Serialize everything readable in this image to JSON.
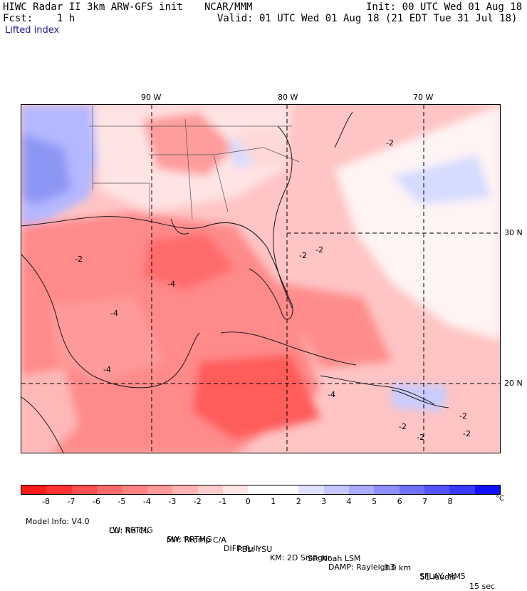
{
  "header": {
    "model": "HIWC Radar II 3km ARW-GFS init",
    "center": "NCAR/MMM",
    "init": "Init: 00 UTC Wed 01 Aug 18",
    "fcst": "Fcst:    1 h",
    "valid": "Valid: 01 UTC Wed 01 Aug 18 (21 EDT Tue 31 Jul 18)",
    "field": "Lifted index"
  },
  "axes": {
    "lon_labels": [
      "90 W",
      "80 W",
      "70 W"
    ],
    "lat_labels": [
      "30 N",
      "20 N"
    ]
  },
  "map": {
    "contour_labels": [
      "-2",
      "-4",
      "-4",
      "-2",
      "-4",
      "-2",
      "-2",
      "-2",
      "-4",
      "-2",
      "-2",
      "-2"
    ]
  },
  "legend": {
    "colors": [
      "#ff1a1a",
      "#ff3333",
      "#ff5050",
      "#ff6b6b",
      "#ff8282",
      "#ff9a9a",
      "#ffb3b3",
      "#ffcccc",
      "#ffe6e6",
      "#ffffff",
      "#ffffff",
      "#e0e0ff",
      "#c6c6ff",
      "#aaaaff",
      "#8e8eff",
      "#7070ff",
      "#5555ff",
      "#3a3aff",
      "#1010ff"
    ],
    "labels": [
      "-8",
      "-7",
      "-6",
      "-5",
      "-4",
      "-3",
      "-2",
      "-1",
      "0",
      "1",
      "2",
      "3",
      "4",
      "5",
      "6",
      "7",
      "8"
    ],
    "unit": "°C"
  },
  "footer": {
    "line1": [
      "Model Info: V4.0",
      "CU: No Cu",
      "MP: Thomp C/A",
      "PBL: YSU",
      "SF: Noah LSM",
      "3.0 km",
      "51 levels",
      "15 sec"
    ],
    "line2": [
      "LW: RRTMG",
      "SW: RRTMG",
      "DIFF: full",
      "KM: 2D Smagor",
      "DAMP: Rayleigh3",
      "SFLAY: MM5"
    ]
  }
}
